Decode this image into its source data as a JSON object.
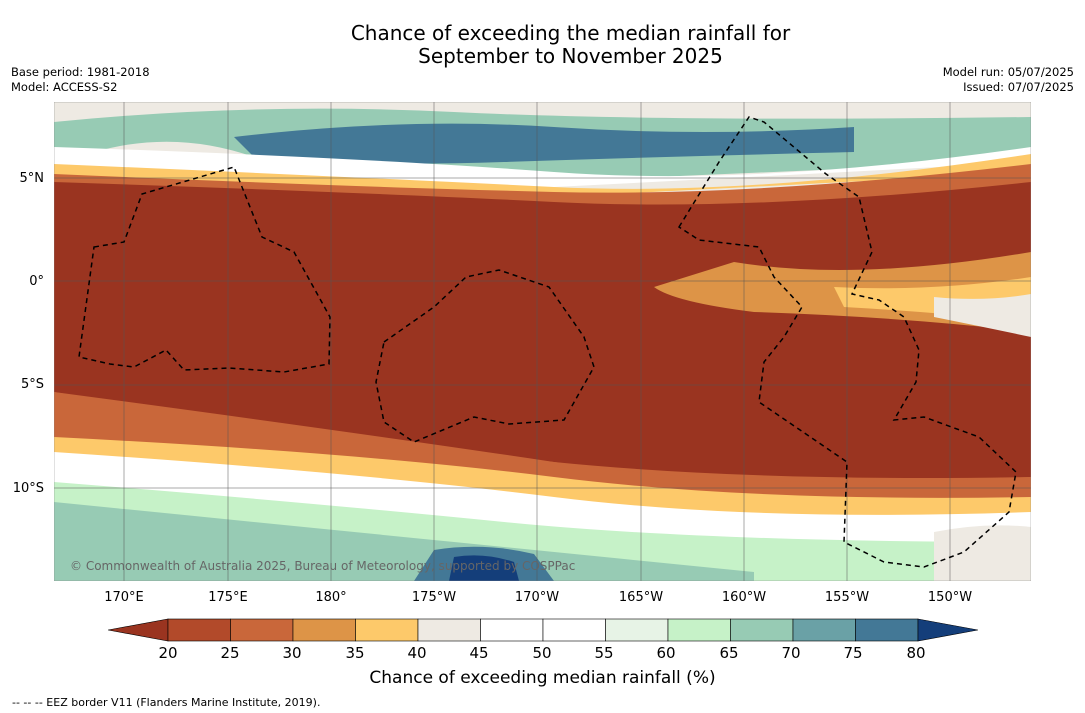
{
  "title": {
    "line1": "Chance of exceeding the median rainfall for",
    "line2": "September to November 2025"
  },
  "meta_left": {
    "base_period": "Base period: 1981-2018",
    "model": "Model: ACCESS-S2"
  },
  "meta_right": {
    "model_run": "Model run: 05/07/2025",
    "issued": "Issued: 07/07/2025"
  },
  "latitudes": [
    "5°N",
    "0°",
    "5°S",
    "10°S"
  ],
  "longitudes": [
    "170°E",
    "175°E",
    "180°",
    "175°W",
    "170°W",
    "165°W",
    "160°W",
    "155°W",
    "150°W"
  ],
  "copyright": "© Commonwealth of Australia 2025, Bureau of Meteorology, supported by COSPPac",
  "colorbar": {
    "ticks": [
      "20",
      "25",
      "30",
      "35",
      "40",
      "45",
      "50",
      "55",
      "60",
      "65",
      "70",
      "75",
      "80"
    ],
    "colors": [
      "#9a3420",
      "#b24a2a",
      "#c9673a",
      "#dd9447",
      "#fdc96a",
      "#eeeae3",
      "#ffffff",
      "#ffffff",
      "#e7f3e6",
      "#c6f2c8",
      "#97cbb4",
      "#6aa1a6",
      "#437896",
      "#143e7a"
    ],
    "label": "Chance of exceeding median rainfall (%)"
  },
  "footnote": "-- -- -- EEZ border V11 (Flanders Marine Institute, 2019)."
}
